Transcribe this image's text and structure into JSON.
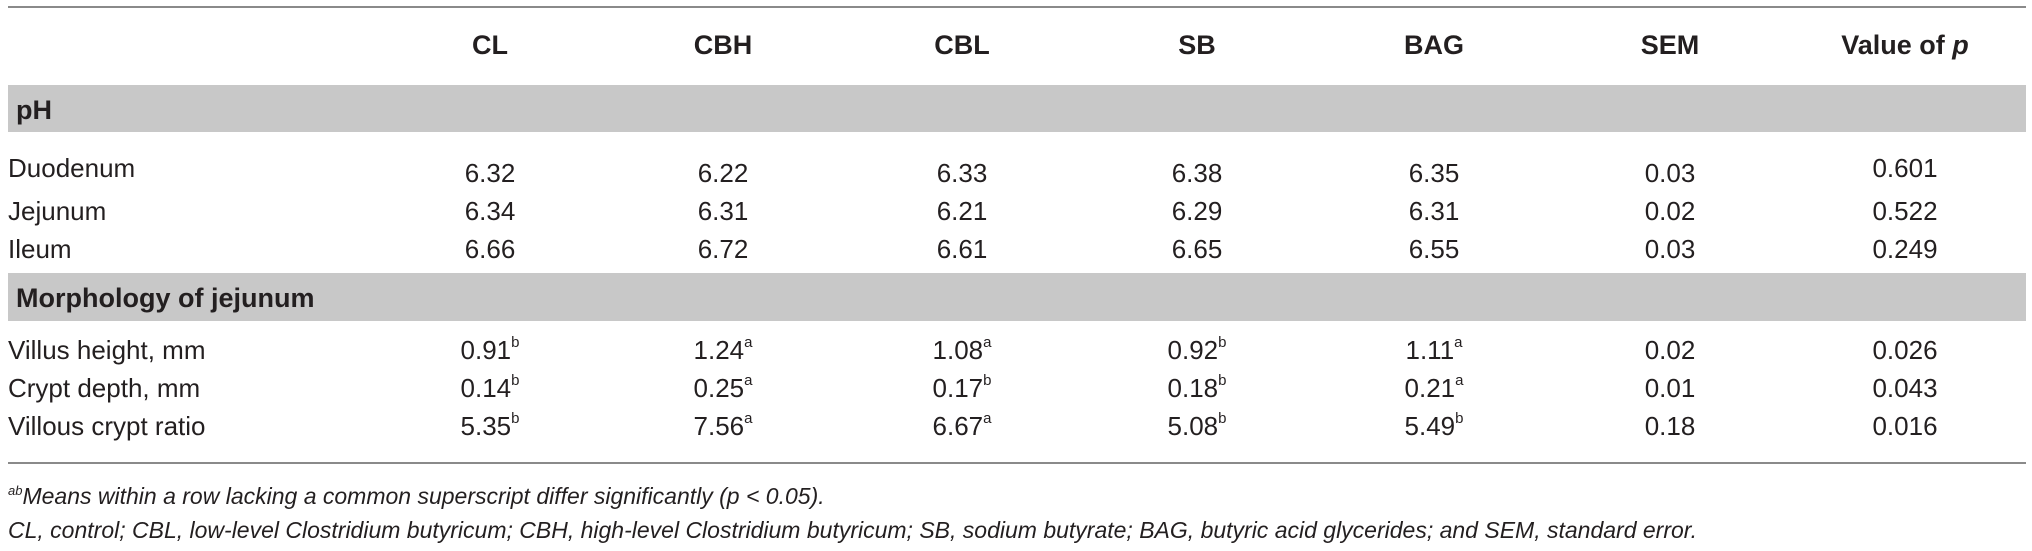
{
  "columns": [
    "",
    "CL",
    "CBH",
    "CBL",
    "SB",
    "BAG",
    "SEM",
    "Value of"
  ],
  "p_symbol": "p",
  "sections": [
    {
      "title": "pH",
      "rows": [
        {
          "label": "Duodenum",
          "cells": [
            [
              "6.32",
              ""
            ],
            [
              "6.22",
              ""
            ],
            [
              "6.33",
              ""
            ],
            [
              "6.38",
              ""
            ],
            [
              "6.35",
              ""
            ],
            [
              "0.03",
              ""
            ],
            [
              "0.601",
              ""
            ]
          ]
        },
        {
          "label": "Jejunum",
          "cells": [
            [
              "6.34",
              ""
            ],
            [
              "6.31",
              ""
            ],
            [
              "6.21",
              ""
            ],
            [
              "6.29",
              ""
            ],
            [
              "6.31",
              ""
            ],
            [
              "0.02",
              ""
            ],
            [
              "0.522",
              ""
            ]
          ]
        },
        {
          "label": "Ileum",
          "cells": [
            [
              "6.66",
              ""
            ],
            [
              "6.72",
              ""
            ],
            [
              "6.61",
              ""
            ],
            [
              "6.65",
              ""
            ],
            [
              "6.55",
              ""
            ],
            [
              "0.03",
              ""
            ],
            [
              "0.249",
              ""
            ]
          ]
        }
      ]
    },
    {
      "title": "Morphology of jejunum",
      "rows": [
        {
          "label": "Villus height, mm",
          "cells": [
            [
              "0.91",
              "b"
            ],
            [
              "1.24",
              "a"
            ],
            [
              "1.08",
              "a"
            ],
            [
              "0.92",
              "b"
            ],
            [
              "1.11",
              "a"
            ],
            [
              "0.02",
              ""
            ],
            [
              "0.026",
              ""
            ]
          ]
        },
        {
          "label": "Crypt depth, mm",
          "cells": [
            [
              "0.14",
              "b"
            ],
            [
              "0.25",
              "a"
            ],
            [
              "0.17",
              "b"
            ],
            [
              "0.18",
              "b"
            ],
            [
              "0.21",
              "a"
            ],
            [
              "0.01",
              ""
            ],
            [
              "0.043",
              ""
            ]
          ]
        },
        {
          "label": "Villous crypt ratio",
          "cells": [
            [
              "5.35",
              "b"
            ],
            [
              "7.56",
              "a"
            ],
            [
              "6.67",
              "a"
            ],
            [
              "5.08",
              "b"
            ],
            [
              "5.49",
              "b"
            ],
            [
              "0.18",
              ""
            ],
            [
              "0.016",
              ""
            ]
          ]
        }
      ]
    }
  ],
  "footnotes": {
    "sup_marker": "ab",
    "significance": "Means within a row lacking a common superscript differ significantly (p < 0.05).",
    "abbreviations": "CL, control; CBL, low-level Clostridium butyricum; CBH, high-level Clostridium butyricum; SB, sodium butyrate; BAG, butyric acid glycerides; and SEM, standard error."
  }
}
